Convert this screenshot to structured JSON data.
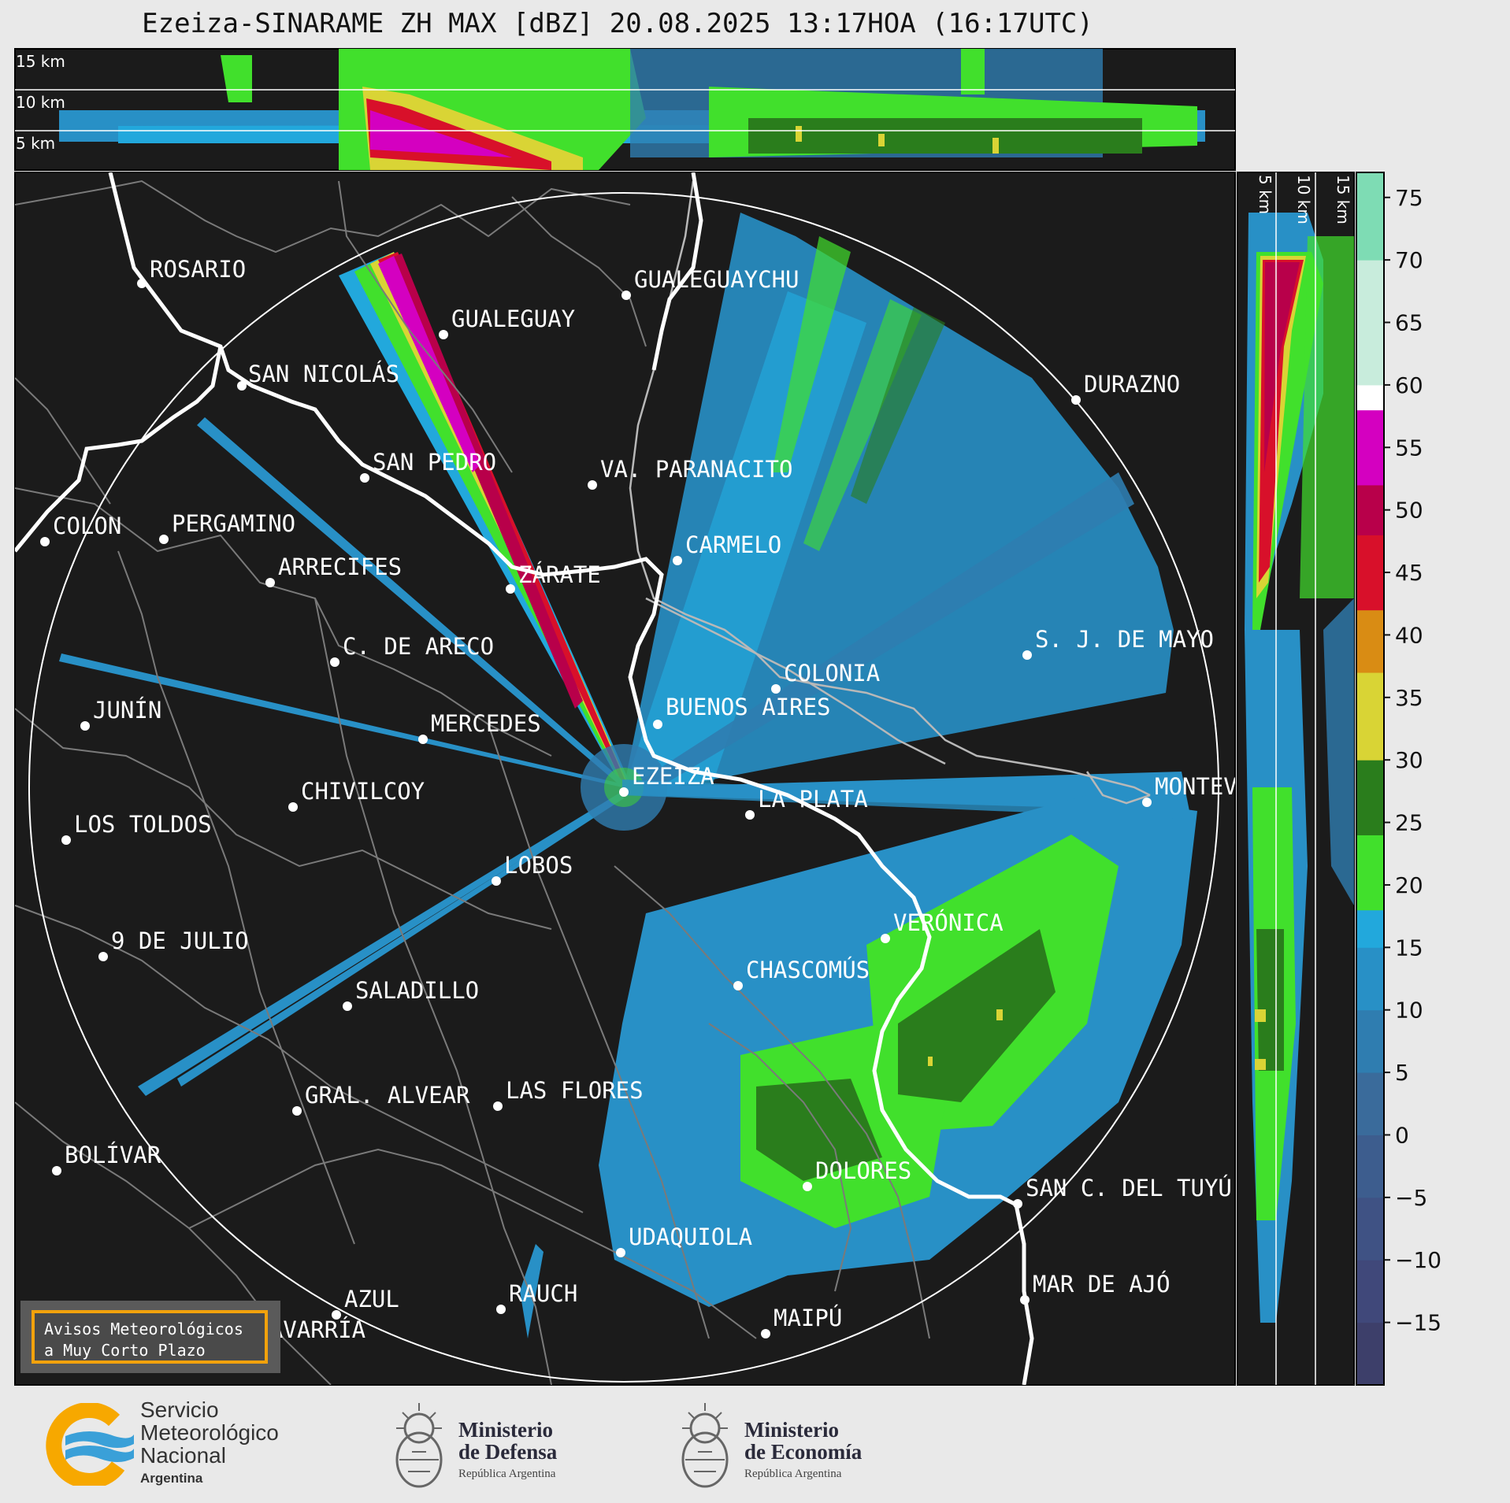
{
  "title": "Ezeiza-SINARAME ZH MAX [dBZ] 20.08.2025 13:17HOA (16:17UTC)",
  "height_labels": [
    "15 km",
    "10 km",
    "5 km"
  ],
  "side_height_labels": [
    "5 km",
    "10 km",
    "15 km"
  ],
  "cities": [
    {
      "name": "ROSARIO"
    },
    {
      "name": "GUALEGUAYCHU"
    },
    {
      "name": "GUALEGUAY"
    },
    {
      "name": "SAN NICOLÁS"
    },
    {
      "name": "DURAZNO"
    },
    {
      "name": "SAN PEDRO"
    },
    {
      "name": "VA. PARANACITO"
    },
    {
      "name": "COLON"
    },
    {
      "name": "PERGAMINO"
    },
    {
      "name": "CARMELO"
    },
    {
      "name": "ARRECIFES"
    },
    {
      "name": "ZÁRATE"
    },
    {
      "name": "C. DE ARECO"
    },
    {
      "name": "S. J. DE MAYO"
    },
    {
      "name": "COLONIA"
    },
    {
      "name": "JUNÍN"
    },
    {
      "name": "BUENOS AIRES"
    },
    {
      "name": "MERCEDES"
    },
    {
      "name": "EZEIZA"
    },
    {
      "name": "MONTEV"
    },
    {
      "name": "CHIVILCOY"
    },
    {
      "name": "LA PLATA"
    },
    {
      "name": "LOS TOLDOS"
    },
    {
      "name": "LOBOS"
    },
    {
      "name": "VERÓNICA"
    },
    {
      "name": "9 DE JULIO"
    },
    {
      "name": "CHASCOMÚS"
    },
    {
      "name": "SALADILLO"
    },
    {
      "name": "GRAL. ALVEAR"
    },
    {
      "name": "LAS FLORES"
    },
    {
      "name": "BOLÍVAR"
    },
    {
      "name": "DOLORES"
    },
    {
      "name": "SAN C. DEL TUYÚ"
    },
    {
      "name": "UDAQUIOLA"
    },
    {
      "name": "MAR DE AJÓ"
    },
    {
      "name": "AZUL"
    },
    {
      "name": "RAUCH"
    },
    {
      "name": "OLAVARRÍA"
    },
    {
      "name": "MAIPÚ"
    }
  ],
  "colorbar": {
    "unit": "dBZ",
    "ticks": [
      "75",
      "70",
      "65",
      "60",
      "55",
      "50",
      "45",
      "40",
      "35",
      "30",
      "25",
      "20",
      "15",
      "10",
      "5",
      "0",
      "−5",
      "−10",
      "−15"
    ],
    "range": [
      -20,
      77
    ],
    "bands": [
      {
        "from": -20,
        "to": -15,
        "color": "#3d3f6a"
      },
      {
        "from": -15,
        "to": -10,
        "color": "#40487a"
      },
      {
        "from": -10,
        "to": -5,
        "color": "#3f5284"
      },
      {
        "from": -5,
        "to": 0,
        "color": "#3d5d8e"
      },
      {
        "from": 0,
        "to": 5,
        "color": "#3a6b9b"
      },
      {
        "from": 5,
        "to": 10,
        "color": "#2f7db0"
      },
      {
        "from": 10,
        "to": 15,
        "color": "#2890c6"
      },
      {
        "from": 15,
        "to": 18,
        "color": "#22a8dc"
      },
      {
        "from": 18,
        "to": 24,
        "color": "#41e02c"
      },
      {
        "from": 24,
        "to": 30,
        "color": "#2a7d1c"
      },
      {
        "from": 30,
        "to": 37,
        "color": "#d9d435"
      },
      {
        "from": 37,
        "to": 42,
        "color": "#d98c14"
      },
      {
        "from": 42,
        "to": 48,
        "color": "#d8102a"
      },
      {
        "from": 48,
        "to": 52,
        "color": "#b8004a"
      },
      {
        "from": 52,
        "to": 58,
        "color": "#d400c0"
      },
      {
        "from": 58,
        "to": 60,
        "color": "#ffffff"
      },
      {
        "from": 60,
        "to": 70,
        "color": "#c8ecdc"
      },
      {
        "from": 70,
        "to": 77,
        "color": "#7edcb4"
      }
    ]
  },
  "avisos": {
    "line1": "Avisos Meteorológicos",
    "line2": "a Muy Corto Plazo"
  },
  "footer": {
    "smn": {
      "line1": "Servicio",
      "line2": "Meteorológico",
      "line3": "Nacional",
      "line4": "Argentina"
    },
    "defensa": {
      "line1": "Ministerio",
      "line2": "de Defensa",
      "line3": "República Argentina"
    },
    "economia": {
      "line1": "Ministerio",
      "line2": "de Economía",
      "line3": "República Argentina"
    }
  },
  "colors": {
    "map_bg": "#1b1b1b",
    "river": "#ffffff",
    "borders": "#7a7a7a",
    "accent": "#f2a20c"
  }
}
